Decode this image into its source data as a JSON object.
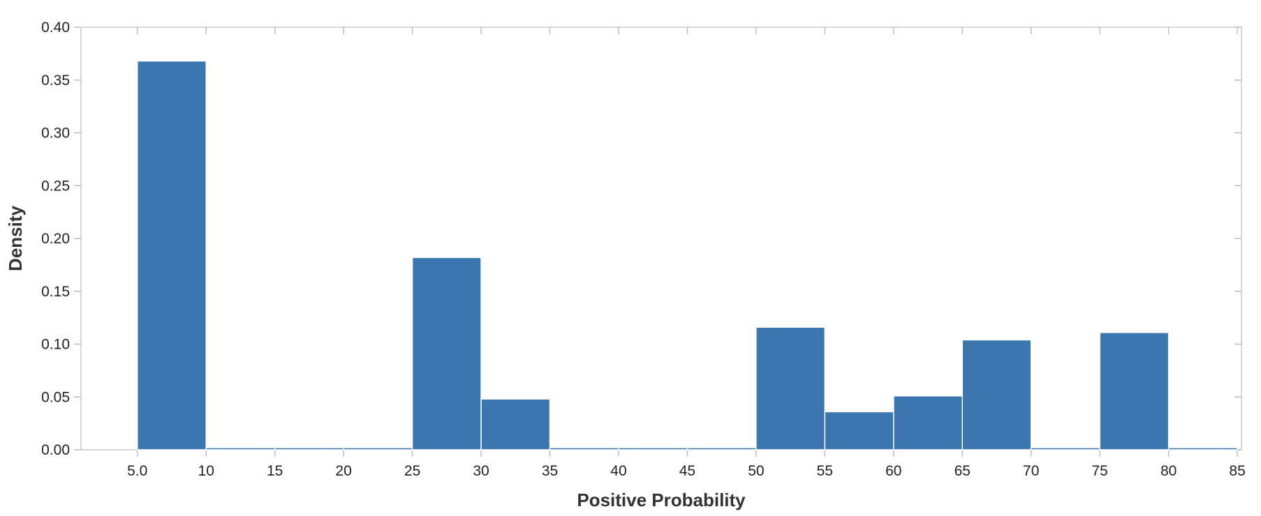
{
  "chart_data": {
    "type": "bar",
    "xlabel": "Positive Probability",
    "ylabel": "Density",
    "xlim": [
      0.9,
      85.3
    ],
    "ylim": [
      0,
      0.4
    ],
    "x_ticks": [
      5,
      10,
      15,
      20,
      25,
      30,
      35,
      40,
      45,
      50,
      55,
      60,
      65,
      70,
      75,
      80,
      85
    ],
    "x_tick_labels": [
      "5.0",
      "10",
      "15",
      "20",
      "25",
      "30",
      "35",
      "40",
      "45",
      "50",
      "55",
      "60",
      "65",
      "70",
      "75",
      "80",
      "85"
    ],
    "y_ticks": [
      0,
      0.05,
      0.1,
      0.15,
      0.2,
      0.25,
      0.3,
      0.35,
      0.4
    ],
    "y_tick_labels": [
      "0.00",
      "0.05",
      "0.10",
      "0.15",
      "0.20",
      "0.25",
      "0.30",
      "0.35",
      "0.40"
    ],
    "bins": [
      {
        "start": 5,
        "end": 10,
        "value": 0.368
      },
      {
        "start": 10,
        "end": 15,
        "value": 0.002
      },
      {
        "start": 15,
        "end": 20,
        "value": 0.002
      },
      {
        "start": 20,
        "end": 25,
        "value": 0.002
      },
      {
        "start": 25,
        "end": 30,
        "value": 0.182
      },
      {
        "start": 30,
        "end": 35,
        "value": 0.048
      },
      {
        "start": 35,
        "end": 40,
        "value": 0.002
      },
      {
        "start": 40,
        "end": 45,
        "value": 0.002
      },
      {
        "start": 45,
        "end": 50,
        "value": 0.002
      },
      {
        "start": 50,
        "end": 55,
        "value": 0.116
      },
      {
        "start": 55,
        "end": 60,
        "value": 0.036
      },
      {
        "start": 60,
        "end": 65,
        "value": 0.051
      },
      {
        "start": 65,
        "end": 70,
        "value": 0.104
      },
      {
        "start": 70,
        "end": 75,
        "value": 0.002
      },
      {
        "start": 75,
        "end": 80,
        "value": 0.111
      },
      {
        "start": 80,
        "end": 85,
        "value": 0.002
      }
    ],
    "bar_color": "#3b76b0",
    "axis_color": "#c8c8c8",
    "grid": false,
    "legend": "none"
  }
}
